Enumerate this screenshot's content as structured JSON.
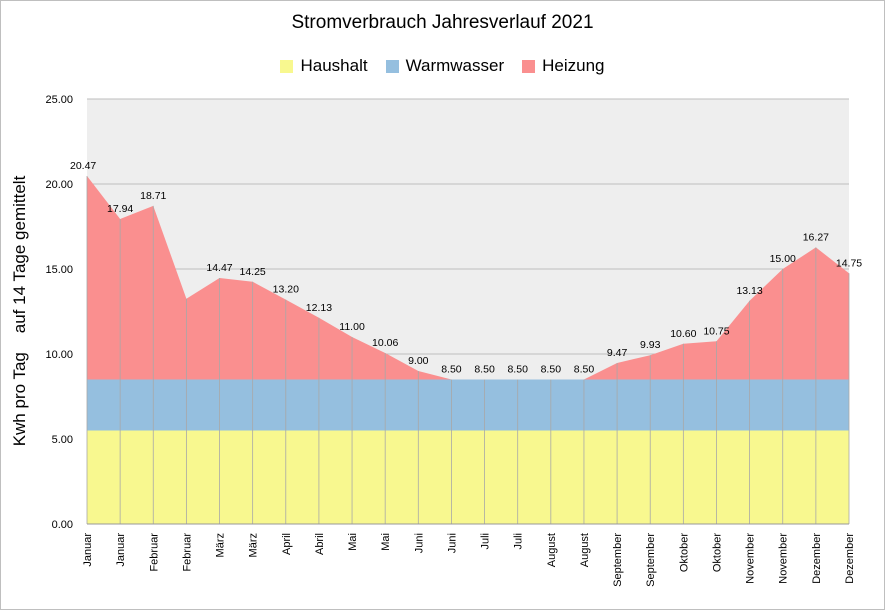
{
  "chart_data": {
    "type": "area",
    "stacked": true,
    "title": "Stromverbrauch Jahresverlauf 2021",
    "ylabel": "Kwh pro Tag    auf 14 Tage gemittelt",
    "xlabel": "",
    "ylim": [
      0,
      25
    ],
    "yticks": [
      "0.00",
      "5.00",
      "10.00",
      "15.00",
      "20.00",
      "25.00"
    ],
    "grid": true,
    "legend": "top",
    "categories": [
      "Januar",
      "Januar",
      "Februar",
      "Februar",
      "März",
      "März",
      "April",
      "Abril",
      "Mai",
      "Mai",
      "Juni",
      "Juni",
      "Juli",
      "Juli",
      "August",
      "August",
      "September",
      "September",
      "Oktober",
      "Oktober",
      "November",
      "November",
      "Dezember",
      "Dezember"
    ],
    "series": [
      {
        "name": "Haushalt",
        "color": "#f8f88f",
        "values": [
          5.5,
          5.5,
          5.5,
          5.5,
          5.5,
          5.5,
          5.5,
          5.5,
          5.5,
          5.5,
          5.5,
          5.5,
          5.5,
          5.5,
          5.5,
          5.5,
          5.5,
          5.5,
          5.5,
          5.5,
          5.5,
          5.5,
          5.5,
          5.5
        ]
      },
      {
        "name": "Warmwasser",
        "color": "#95bfdf",
        "values": [
          3,
          3,
          3,
          3,
          3,
          3,
          3,
          3,
          3,
          3,
          3,
          3,
          3,
          3,
          3,
          3,
          3,
          3,
          3,
          3,
          3,
          3,
          3,
          3
        ]
      },
      {
        "name": "Heizung",
        "color": "#fa8f8f",
        "values": [
          11.97,
          9.44,
          10.21,
          4.75,
          5.97,
          5.75,
          4.7,
          3.63,
          2.5,
          1.56,
          0.5,
          0,
          0,
          0,
          0,
          0,
          0.97,
          1.43,
          2.1,
          2.25,
          4.63,
          6.5,
          7.77,
          6.25
        ]
      }
    ],
    "totals": [
      20.47,
      17.94,
      18.71,
      13.25,
      14.47,
      14.25,
      13.2,
      12.13,
      11.0,
      10.06,
      9.0,
      8.5,
      8.5,
      8.5,
      8.5,
      8.5,
      9.47,
      9.93,
      10.6,
      10.75,
      13.13,
      15.0,
      16.27,
      14.75
    ],
    "data_labels": [
      "20.47",
      "17.94",
      "18.71",
      "",
      "14.47",
      "14.25",
      "13.20",
      "12.13",
      "11.00",
      "10.06",
      "9.00",
      "8.50",
      "8.50",
      "8.50",
      "8.50",
      "8.50",
      "9.47",
      "9.93",
      "10.60",
      "10.75",
      "13.13",
      "15.00",
      "16.27",
      "14.75"
    ]
  }
}
